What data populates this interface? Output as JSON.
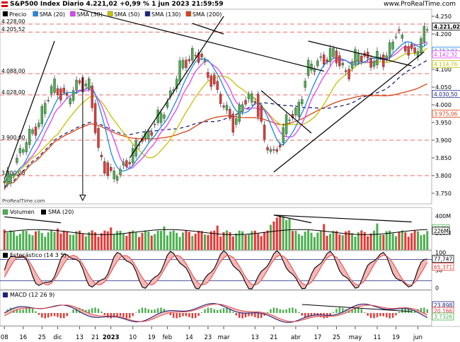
{
  "header": {
    "title": "S&P500 Index Diario 4.221,02 +0,99 % 1 jun 2023 21:59:59",
    "source": "www.ProRealTime.com",
    "watermark": "ProRealTime.com"
  },
  "colors": {
    "up": "#4caf50",
    "down": "#e53935",
    "sma20": "#1e88e5",
    "sma30": "#e040fb",
    "sma50": "#c6c200",
    "sma130": "#1a237e",
    "sma200": "#d84315",
    "support": "#e53935",
    "axis_badge_price": "#000000"
  },
  "chart_data": [
    {
      "type": "candlestick",
      "name": "Precio",
      "legend": [
        "Precio",
        "SMA (20)",
        "SMA (30)",
        "SMA (50)",
        "SMA (130)",
        "SMA (200)"
      ],
      "ylim": [
        3720,
        4270
      ],
      "yticks": [
        3750,
        3800,
        3850,
        3900,
        3950,
        4000,
        4050,
        4100,
        4150,
        4200,
        4250
      ],
      "ytick_labels": [
        "3.750",
        "3.800",
        "3.850",
        "3.900",
        "3.950",
        "4.000",
        "4.050",
        "4.100",
        "4.150",
        "4.200",
        "4.250"
      ],
      "x_ticks": [
        "08",
        "16",
        "25",
        "dic",
        "13",
        "21",
        "2023",
        "10",
        "19",
        "feb",
        "14",
        "23",
        "mar",
        "13",
        "21",
        "abr",
        "17",
        "25",
        "may",
        "11",
        "19",
        "jun"
      ],
      "horizontal_levels": [
        {
          "value": 4228.0,
          "label": "4.228,00"
        },
        {
          "value": 4205.52,
          "label": "4.205,52"
        },
        {
          "value": 4088.0,
          "label": "4.088,00"
        },
        {
          "value": 4028.0,
          "label": "4.028,00"
        },
        {
          "value": 3900.0,
          "label": "3.900,00"
        },
        {
          "value": 3800.0,
          "label": "3.800,00"
        }
      ],
      "last_values": [
        {
          "name": "Precio",
          "value": "4.221,02",
          "color": "#000000"
        },
        {
          "name": "SMA (20)",
          "value": "4.152,93",
          "color": "#1e88e5"
        },
        {
          "name": "SMA (30)",
          "value": "4.142,32",
          "color": "#e040fb"
        },
        {
          "name": "SMA (50)",
          "value": "4.114,76",
          "color": "#c6c200"
        },
        {
          "name": "SMA (130)",
          "value": "4.030,50",
          "color": "#1a237e"
        },
        {
          "name": "SMA (200)",
          "value": "3.975,06",
          "color": "#d84315"
        }
      ]
    },
    {
      "type": "bar",
      "name": "Volumen",
      "legend": [
        "Volumen",
        "SMA (20)"
      ],
      "yticks": [
        "400M",
        "200M"
      ],
      "last_values": [
        {
          "value": "257M",
          "color": "#4caf50"
        },
        {
          "value": "226M",
          "color": "#000000"
        }
      ]
    },
    {
      "type": "line",
      "name": "Estocástico (14 3 5)",
      "ylim": [
        -5,
        105
      ],
      "yticks": [
        100,
        50,
        0
      ],
      "levels": [
        80,
        20
      ],
      "last_values": [
        {
          "value": "77,747",
          "color": "#000000"
        },
        {
          "value": "65,371",
          "color": "#e53935"
        }
      ]
    },
    {
      "type": "histogram",
      "name": "MACD (12 26 9)",
      "last_values": [
        {
          "value": "23,898",
          "color": "#1a237e"
        },
        {
          "value": "20,166",
          "color": "#e53935"
        },
        {
          "value": "3,7326",
          "color": "#4caf50"
        }
      ]
    }
  ]
}
